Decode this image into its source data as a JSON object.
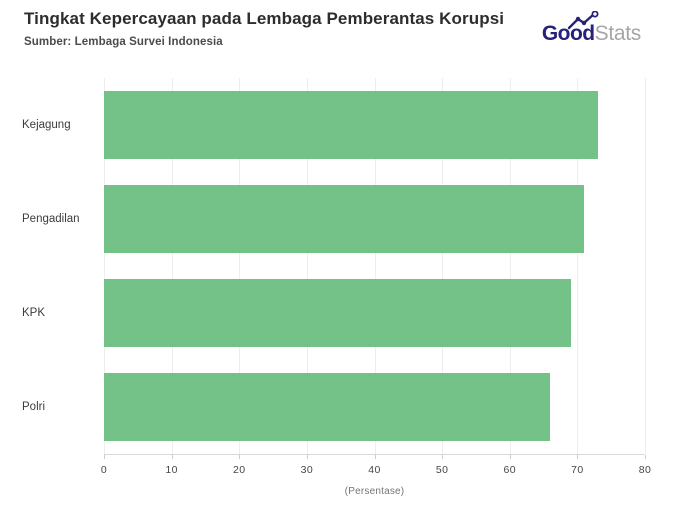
{
  "header": {
    "title": "Tingkat Kepercayaan pada Lembaga Pemberantas Korupsi",
    "source": "Sumber: Lembaga Survei Indonesia"
  },
  "logo": {
    "part1": "Good",
    "part2": "Stats",
    "navy": "#26227b",
    "gray": "#a5a5aa"
  },
  "chart_data": {
    "type": "bar",
    "orientation": "horizontal",
    "title": "Tingkat Kepercayaan pada Lembaga Pemberantas Korupsi",
    "subtitle": "Sumber: Lembaga Survei Indonesia",
    "categories": [
      "Kejagung",
      "Pengadilan",
      "KPK",
      "Polri"
    ],
    "values": [
      73,
      71,
      69,
      66
    ],
    "xlabel": "(Persentase)",
    "ylabel": "",
    "xlim": [
      0,
      80
    ],
    "xticks": [
      0,
      10,
      20,
      30,
      40,
      50,
      60,
      70,
      80
    ],
    "bar_color": "#74c287",
    "gridline_color": "#ededed",
    "axis_line_color": "#d9d9d9",
    "grid": "vertical",
    "legend": "none"
  }
}
